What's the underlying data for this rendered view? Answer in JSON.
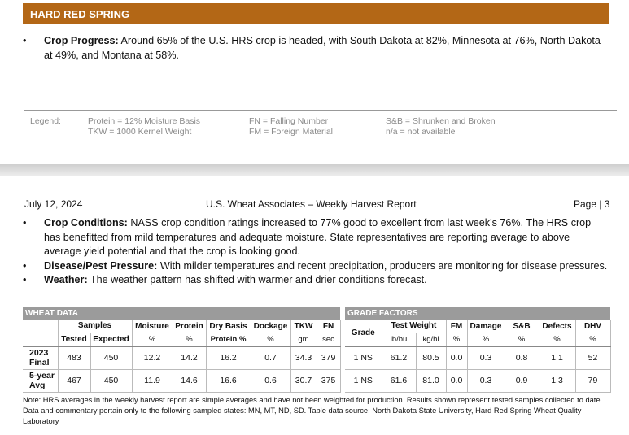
{
  "section_title": "HARD RED SPRING",
  "crop_progress": {
    "label": "Crop Progress:",
    "text": " Around 65% of the U.S. HRS crop is headed, with South Dakota at 82%, Minnesota at 76%, North Dakota at 49%, and Montana at 58%."
  },
  "legend": {
    "title": "Legend:",
    "items": [
      "Protein = 12% Moisture Basis",
      "TKW = 1000 Kernel Weight",
      "FN = Falling Number",
      "FM = Foreign Material",
      "S&B = Shrunken and Broken",
      "n/a = not available"
    ]
  },
  "page_header": {
    "date": "July 12, 2024",
    "title": "U.S. Wheat Associates – Weekly Harvest Report",
    "page": "Page | 3"
  },
  "bullets": [
    {
      "label": "Crop Conditions:",
      "text": " NASS crop condition ratings increased to 77% good to excellent from last week’s 76%. The HRS crop has benefitted from mild temperatures and adequate moisture. State representatives are reporting average to above average yield potential and that the crop is looking good."
    },
    {
      "label": "Disease/Pest Pressure:",
      "text": " With milder temperatures and recent precipitation, producers are monitoring for disease pressures."
    },
    {
      "label": "Weather:",
      "text": " The weather pattern has shifted with warmer and drier conditions forecast."
    }
  ],
  "wheat_data": {
    "caption": "WHEAT DATA",
    "samples": "Samples",
    "tested": "Tested",
    "expected": "Expected",
    "cols": [
      {
        "h": "Moisture",
        "u": "%"
      },
      {
        "h": "Protein",
        "u": "%"
      },
      {
        "h": "Dry Basis",
        "u": "Protein %"
      },
      {
        "h": "Dockage",
        "u": "%"
      },
      {
        "h": "TKW",
        "u": "gm"
      },
      {
        "h": "FN",
        "u": "sec"
      }
    ],
    "rows": [
      {
        "label1": "2023",
        "label2": "Final",
        "values": [
          "483",
          "450",
          "12.2",
          "14.2",
          "16.2",
          "0.7",
          "34.3",
          "379"
        ]
      },
      {
        "label1": "5-year",
        "label2": "Avg",
        "values": [
          "467",
          "450",
          "11.9",
          "14.6",
          "16.6",
          "0.6",
          "30.7",
          "375"
        ]
      }
    ]
  },
  "grade_factors": {
    "caption": "GRADE FACTORS",
    "grade": "Grade",
    "test_weight": "Test Weight",
    "lbbu": "lb/bu",
    "kghl": "kg/hl",
    "cols": [
      {
        "h": "FM",
        "u": "%"
      },
      {
        "h": "Damage",
        "u": "%"
      },
      {
        "h": "S&B",
        "u": "%"
      },
      {
        "h": "Defects",
        "u": "%"
      },
      {
        "h": "DHV",
        "u": "%"
      }
    ],
    "rows": [
      {
        "values": [
          "1 NS",
          "61.2",
          "80.5",
          "0.0",
          "0.3",
          "0.8",
          "1.1",
          "52"
        ]
      },
      {
        "values": [
          "1 NS",
          "61.6",
          "81.0",
          "0.0",
          "0.3",
          "0.9",
          "1.3",
          "79"
        ]
      }
    ]
  },
  "note": "Note: HRS averages in the weekly harvest report are simple averages and have not been weighted for production. Results shown represent tested samples collected to date. Data and commentary pertain only to the following sampled states: MN, MT, ND, SD. Table data source: North Dakota State University, Hard Red Spring Wheat Quality Laboratory"
}
